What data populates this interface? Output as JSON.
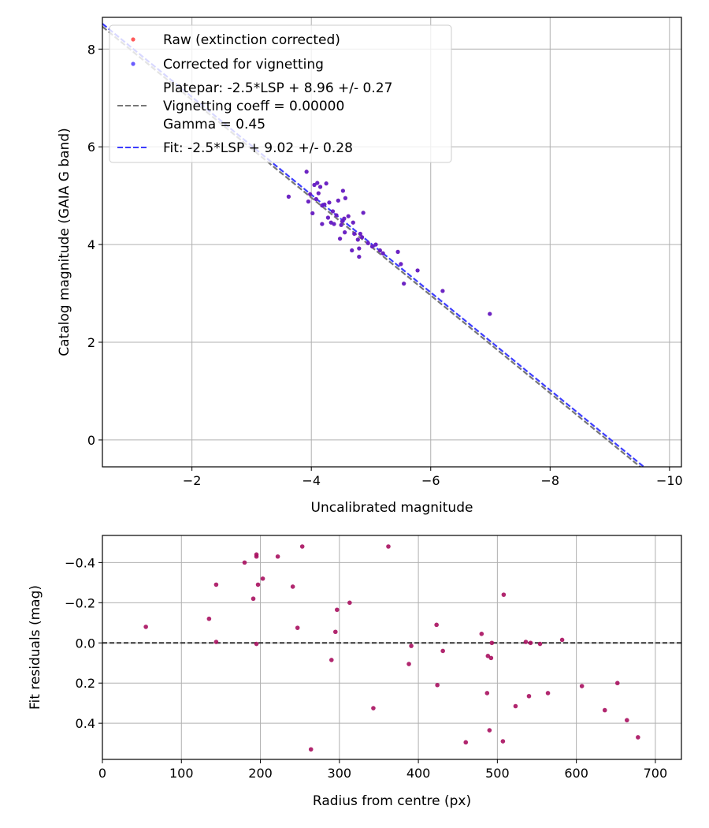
{
  "chart_data": [
    {
      "type": "scatter",
      "xlabel": "Uncalibrated magnitude",
      "ylabel": "Catalog magnitude (GAIA G band)",
      "xlim": [
        -0.5,
        -10.2
      ],
      "ylim": [
        8.65,
        -0.55
      ],
      "x_inverted": true,
      "y_inverted": true,
      "grid": true,
      "legend_position": "upper-left",
      "x_ticks": [
        -2,
        -4,
        -6,
        -8,
        -10
      ],
      "x_tick_labels": [
        "−2",
        "−4",
        "−6",
        "−8",
        "−10"
      ],
      "y_ticks": [
        0,
        2,
        4,
        6,
        8
      ],
      "y_tick_labels": [
        "0",
        "2",
        "4",
        "6",
        "8"
      ],
      "legend": {
        "raw": "Raw (extinction corrected)",
        "corrected": "Corrected for vignetting",
        "platepar_line1": "Platepar: -2.5*LSP + 8.96 +/- 0.27",
        "platepar_line2": "Vignetting coeff = 0.00000",
        "platepar_line3": "Gamma = 0.45",
        "fit": "Fit: -2.5*LSP + 9.02 +/- 0.28"
      },
      "lines": [
        {
          "name": "Platepar",
          "slope": 1.0,
          "intercept": 8.96,
          "color": "#777777",
          "style": "dashed"
        },
        {
          "name": "Fit",
          "slope": 1.0,
          "intercept": 9.02,
          "color": "#3d3dff",
          "style": "dashed"
        }
      ],
      "series": [
        {
          "name": "Corrected for vignetting",
          "color": "#5a1acc",
          "points": [
            [
              -3.62,
              4.98
            ],
            [
              -3.92,
              5.49
            ],
            [
              -3.95,
              4.88
            ],
            [
              -3.98,
              5.03
            ],
            [
              -4.02,
              4.64
            ],
            [
              -4.05,
              5.22
            ],
            [
              -4.08,
              4.93
            ],
            [
              -4.1,
              5.26
            ],
            [
              -4.12,
              5.05
            ],
            [
              -4.15,
              5.18
            ],
            [
              -4.18,
              4.8
            ],
            [
              -4.18,
              4.42
            ],
            [
              -4.22,
              4.82
            ],
            [
              -4.25,
              5.25
            ],
            [
              -4.28,
              4.55
            ],
            [
              -4.3,
              4.86
            ],
            [
              -4.33,
              4.45
            ],
            [
              -4.36,
              4.68
            ],
            [
              -4.38,
              4.42
            ],
            [
              -4.42,
              4.6
            ],
            [
              -4.45,
              4.9
            ],
            [
              -4.48,
              4.12
            ],
            [
              -4.5,
              4.4
            ],
            [
              -4.52,
              4.48
            ],
            [
              -4.53,
              5.1
            ],
            [
              -4.55,
              4.53
            ],
            [
              -4.56,
              4.25
            ],
            [
              -4.57,
              4.95
            ],
            [
              -4.62,
              4.58
            ],
            [
              -4.68,
              3.88
            ],
            [
              -4.7,
              4.45
            ],
            [
              -4.72,
              4.22
            ],
            [
              -4.78,
              4.1
            ],
            [
              -4.8,
              3.75
            ],
            [
              -4.8,
              3.92
            ],
            [
              -4.82,
              4.22
            ],
            [
              -4.85,
              4.15
            ],
            [
              -4.87,
              4.65
            ],
            [
              -4.95,
              4.03
            ],
            [
              -5.02,
              3.96
            ],
            [
              -5.08,
              4.0
            ],
            [
              -5.15,
              3.88
            ],
            [
              -5.2,
              3.82
            ],
            [
              -5.45,
              3.85
            ],
            [
              -5.5,
              3.6
            ],
            [
              -5.55,
              3.2
            ],
            [
              -5.78,
              3.47
            ],
            [
              -6.2,
              3.05
            ],
            [
              -6.99,
              2.58
            ]
          ]
        },
        {
          "name": "Raw (extinction corrected)",
          "color": "#ff5a5a",
          "points": [
            [
              -3.62,
              4.98
            ],
            [
              -3.92,
              5.49
            ],
            [
              -3.95,
              4.88
            ],
            [
              -3.98,
              5.03
            ],
            [
              -4.02,
              4.64
            ],
            [
              -4.05,
              5.22
            ],
            [
              -4.08,
              4.93
            ],
            [
              -4.1,
              5.26
            ],
            [
              -4.12,
              5.05
            ],
            [
              -4.15,
              5.18
            ],
            [
              -4.18,
              4.8
            ],
            [
              -4.18,
              4.42
            ],
            [
              -4.22,
              4.82
            ],
            [
              -4.25,
              5.25
            ],
            [
              -4.28,
              4.55
            ],
            [
              -4.3,
              4.86
            ],
            [
              -4.33,
              4.45
            ],
            [
              -4.36,
              4.68
            ],
            [
              -4.38,
              4.42
            ],
            [
              -4.42,
              4.6
            ],
            [
              -4.45,
              4.9
            ],
            [
              -4.48,
              4.12
            ],
            [
              -4.5,
              4.4
            ],
            [
              -4.52,
              4.48
            ],
            [
              -4.53,
              5.1
            ],
            [
              -4.55,
              4.53
            ],
            [
              -4.56,
              4.25
            ],
            [
              -4.57,
              4.95
            ],
            [
              -4.62,
              4.58
            ],
            [
              -4.68,
              3.88
            ],
            [
              -4.7,
              4.45
            ],
            [
              -4.72,
              4.22
            ],
            [
              -4.78,
              4.1
            ],
            [
              -4.8,
              3.75
            ],
            [
              -4.8,
              3.92
            ],
            [
              -4.82,
              4.22
            ],
            [
              -4.85,
              4.15
            ],
            [
              -4.87,
              4.65
            ],
            [
              -4.95,
              4.03
            ],
            [
              -5.02,
              3.96
            ],
            [
              -5.08,
              4.0
            ],
            [
              -5.15,
              3.88
            ],
            [
              -5.2,
              3.82
            ],
            [
              -5.45,
              3.85
            ],
            [
              -5.5,
              3.6
            ],
            [
              -5.55,
              3.2
            ],
            [
              -5.78,
              3.47
            ],
            [
              -6.2,
              3.05
            ],
            [
              -6.99,
              2.58
            ]
          ]
        }
      ]
    },
    {
      "type": "scatter",
      "xlabel": "Radius from centre (px)",
      "ylabel": "Fit residuals (mag)",
      "xlim": [
        0,
        733
      ],
      "ylim": [
        -0.535,
        0.58
      ],
      "grid": true,
      "x_ticks": [
        0,
        100,
        200,
        300,
        400,
        500,
        600,
        700
      ],
      "x_tick_labels": [
        "0",
        "100",
        "200",
        "300",
        "400",
        "500",
        "600",
        "700"
      ],
      "y_ticks": [
        -0.4,
        -0.2,
        0.0,
        0.2,
        0.4
      ],
      "y_tick_labels": [
        "−0.4",
        "−0.2",
        "0.0",
        "0.2",
        "0.4"
      ],
      "hline": {
        "y": 0.0,
        "color": "#333333",
        "style": "dashed"
      },
      "series": [
        {
          "name": "Fit residuals",
          "color": "#a8105f",
          "points": [
            [
              55,
              -0.08
            ],
            [
              135,
              -0.12
            ],
            [
              144,
              -0.29
            ],
            [
              144,
              -0.005
            ],
            [
              180,
              -0.4
            ],
            [
              191,
              -0.22
            ],
            [
              195,
              -0.43
            ],
            [
              195,
              -0.44
            ],
            [
              195,
              0.005
            ],
            [
              197,
              -0.29
            ],
            [
              203,
              -0.32
            ],
            [
              222,
              -0.43
            ],
            [
              241,
              -0.28
            ],
            [
              247,
              -0.075
            ],
            [
              253,
              -0.48
            ],
            [
              264,
              0.53
            ],
            [
              290,
              0.085
            ],
            [
              295,
              -0.055
            ],
            [
              297,
              -0.165
            ],
            [
              313,
              -0.2
            ],
            [
              343,
              0.325
            ],
            [
              362,
              -0.48
            ],
            [
              388,
              0.105
            ],
            [
              391,
              0.015
            ],
            [
              423,
              -0.09
            ],
            [
              424,
              0.21
            ],
            [
              431,
              0.04
            ],
            [
              460,
              0.495
            ],
            [
              480,
              -0.045
            ],
            [
              487,
              0.25
            ],
            [
              488,
              0.065
            ],
            [
              490,
              0.435
            ],
            [
              492,
              0.075
            ],
            [
              493,
              0.0
            ],
            [
              507,
              0.49
            ],
            [
              508,
              -0.24
            ],
            [
              523,
              0.315
            ],
            [
              536,
              -0.005
            ],
            [
              540,
              0.265
            ],
            [
              542,
              0.0
            ],
            [
              554,
              0.005
            ],
            [
              564,
              0.25
            ],
            [
              582,
              -0.015
            ],
            [
              607,
              0.215
            ],
            [
              636,
              0.335
            ],
            [
              652,
              0.2
            ],
            [
              664,
              0.385
            ],
            [
              678,
              0.47
            ]
          ]
        }
      ]
    }
  ]
}
